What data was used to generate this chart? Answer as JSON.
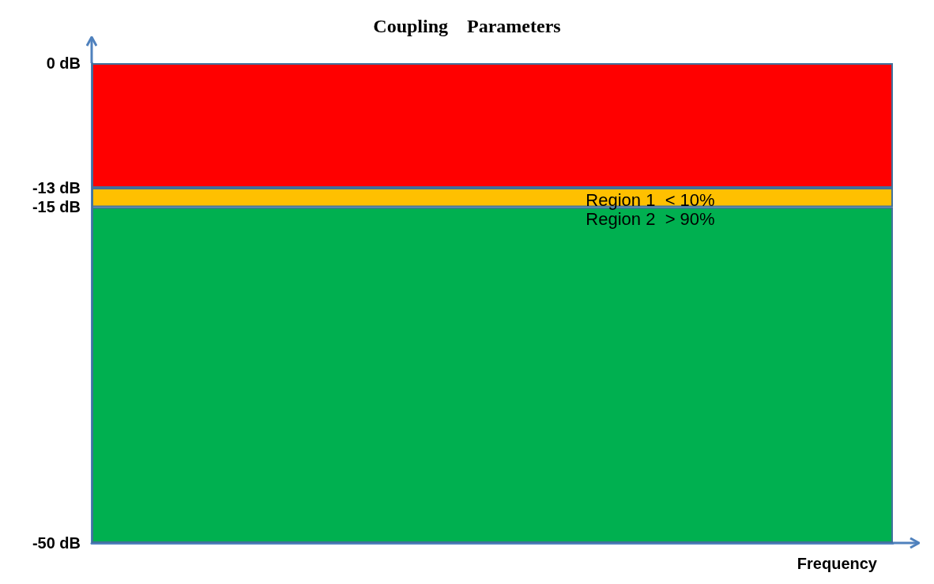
{
  "chart_data": {
    "type": "bar",
    "title": "Coupling    Parameters",
    "xlabel": "Frequency",
    "categories": [
      null
    ],
    "stacked": true,
    "ylim": [
      -50,
      0
    ],
    "yticks": [
      {
        "value": 0,
        "label": "0 dB"
      },
      {
        "value": -13,
        "label": "-13 dB"
      },
      {
        "value": -15,
        "label": "-15 dB"
      },
      {
        "value": -50,
        "label": "-50 dB"
      }
    ],
    "series": [
      {
        "color": "#ff0000",
        "values": [
          -13
        ]
      },
      {
        "name": "Region 1  < 10%",
        "color": "#ffc000",
        "values": [
          -2
        ]
      },
      {
        "name": "Region 2  > 90%",
        "color": "#00b050",
        "values": [
          -35
        ]
      }
    ]
  }
}
